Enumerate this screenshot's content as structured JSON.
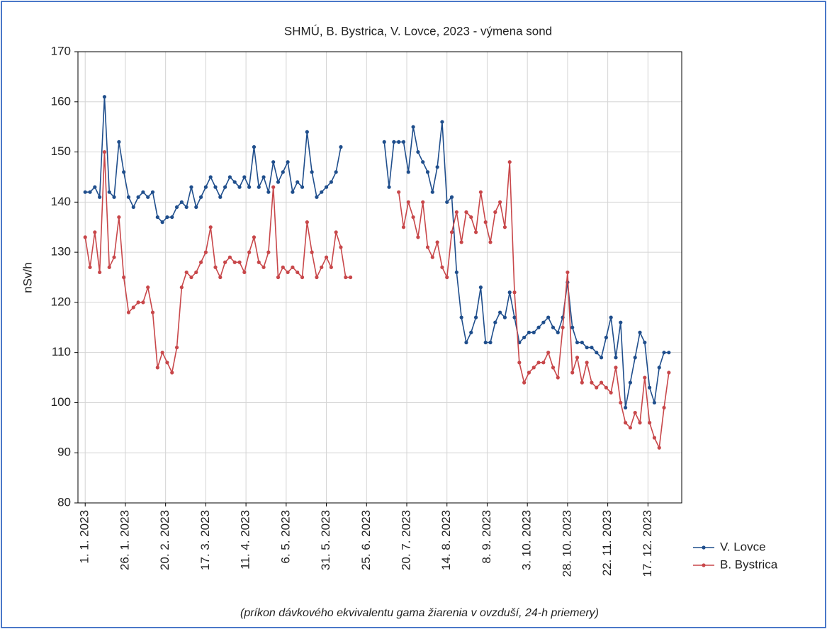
{
  "chart_data": {
    "type": "line",
    "title": "SHMÚ, B. Bystrica, V. Lovce, 2023 - výmena sond",
    "ylabel": "nSv/h",
    "xlabel": "(príkon dávkového ekvivalentu gama žiarenia v ovzduší, 24-h priemery)",
    "x": [
      1,
      4,
      7,
      10,
      13,
      16,
      19,
      22,
      25,
      28,
      31,
      34,
      37,
      40,
      43,
      46,
      49,
      52,
      55,
      58,
      61,
      64,
      67,
      70,
      73,
      76,
      79,
      82,
      85,
      88,
      91,
      94,
      97,
      100,
      103,
      106,
      109,
      112,
      115,
      118,
      121,
      124,
      127,
      130,
      133,
      136,
      139,
      142,
      145,
      148,
      151,
      154,
      157,
      160,
      163,
      166,
      169,
      172,
      175,
      178,
      181,
      184,
      187,
      190,
      193,
      196,
      199,
      202,
      205,
      208,
      211,
      214,
      217,
      220,
      223,
      226,
      229,
      232,
      235,
      238,
      241,
      244,
      247,
      250,
      253,
      256,
      259,
      262,
      265,
      268,
      271,
      274,
      277,
      280,
      283,
      286,
      289,
      292,
      295,
      298,
      301,
      304,
      307,
      310,
      313,
      316,
      319,
      322,
      325,
      328,
      331,
      334,
      337,
      340,
      343,
      346,
      349,
      352,
      355,
      358,
      361,
      364,
      367
    ],
    "series": [
      {
        "name": "V. Lovce",
        "color": "#1f4e8c",
        "values": [
          142,
          142,
          143,
          141,
          161,
          142,
          141,
          152,
          146,
          141,
          139,
          141,
          142,
          141,
          142,
          137,
          136,
          137,
          137,
          139,
          140,
          139,
          143,
          139,
          141,
          143,
          145,
          143,
          141,
          143,
          145,
          144,
          143,
          145,
          143,
          151,
          143,
          145,
          142,
          148,
          144,
          146,
          148,
          142,
          144,
          143,
          154,
          146,
          141,
          142,
          143,
          144,
          146,
          151,
          null,
          null,
          null,
          null,
          null,
          null,
          null,
          null,
          152,
          143,
          152,
          152,
          152,
          146,
          155,
          150,
          148,
          146,
          142,
          147,
          156,
          140,
          141,
          126,
          117,
          112,
          114,
          117,
          123,
          112,
          112,
          116,
          118,
          117,
          122,
          117,
          112,
          113,
          114,
          114,
          115,
          116,
          117,
          115,
          114,
          117,
          124,
          115,
          112,
          112,
          111,
          111,
          110,
          109,
          113,
          117,
          109,
          116,
          99,
          104,
          109,
          114,
          112,
          103,
          100,
          107,
          110,
          110,
          null
        ]
      },
      {
        "name": "B. Bystrica",
        "color": "#c8474a",
        "values": [
          133,
          127,
          134,
          126,
          150,
          127,
          129,
          137,
          125,
          118,
          119,
          120,
          120,
          123,
          118,
          107,
          110,
          108,
          106,
          111,
          123,
          126,
          125,
          126,
          128,
          130,
          135,
          127,
          125,
          128,
          129,
          128,
          128,
          126,
          130,
          133,
          128,
          127,
          130,
          143,
          125,
          127,
          126,
          127,
          126,
          125,
          136,
          130,
          125,
          127,
          129,
          127,
          134,
          131,
          125,
          125,
          null,
          null,
          null,
          null,
          null,
          null,
          null,
          null,
          null,
          142,
          135,
          140,
          137,
          133,
          140,
          131,
          129,
          132,
          127,
          125,
          134,
          138,
          132,
          138,
          137,
          134,
          142,
          136,
          132,
          138,
          140,
          135,
          148,
          122,
          108,
          104,
          106,
          107,
          108,
          108,
          110,
          107,
          105,
          115,
          126,
          106,
          109,
          104,
          108,
          104,
          103,
          104,
          103,
          102,
          107,
          100,
          96,
          95,
          98,
          96,
          105,
          96,
          93,
          91,
          99,
          106,
          null
        ]
      }
    ],
    "xlim": [
      -3.5,
      372
    ],
    "xticks": [
      {
        "value": 1,
        "label": "1. 1. 2023"
      },
      {
        "value": 26,
        "label": "26. 1. 2023"
      },
      {
        "value": 51,
        "label": "20. 2. 2023"
      },
      {
        "value": 76,
        "label": "17. 3. 2023"
      },
      {
        "value": 101,
        "label": "11. 4. 2023"
      },
      {
        "value": 126,
        "label": "6. 5. 2023"
      },
      {
        "value": 151,
        "label": "31. 5. 2023"
      },
      {
        "value": 176,
        "label": "25. 6. 2023"
      },
      {
        "value": 201,
        "label": "20. 7. 2023"
      },
      {
        "value": 226,
        "label": "14. 8. 2023"
      },
      {
        "value": 251,
        "label": "8. 9. 2023"
      },
      {
        "value": 276,
        "label": "3. 10. 2023"
      },
      {
        "value": 301,
        "label": "28. 10. 2023"
      },
      {
        "value": 326,
        "label": "22. 11. 2023"
      },
      {
        "value": 351,
        "label": "17. 12. 2023"
      }
    ],
    "ylim": [
      80,
      170
    ],
    "yticks": [
      80,
      90,
      100,
      110,
      120,
      130,
      140,
      150,
      160,
      170
    ],
    "grid": true,
    "legend": "bottom-right"
  }
}
